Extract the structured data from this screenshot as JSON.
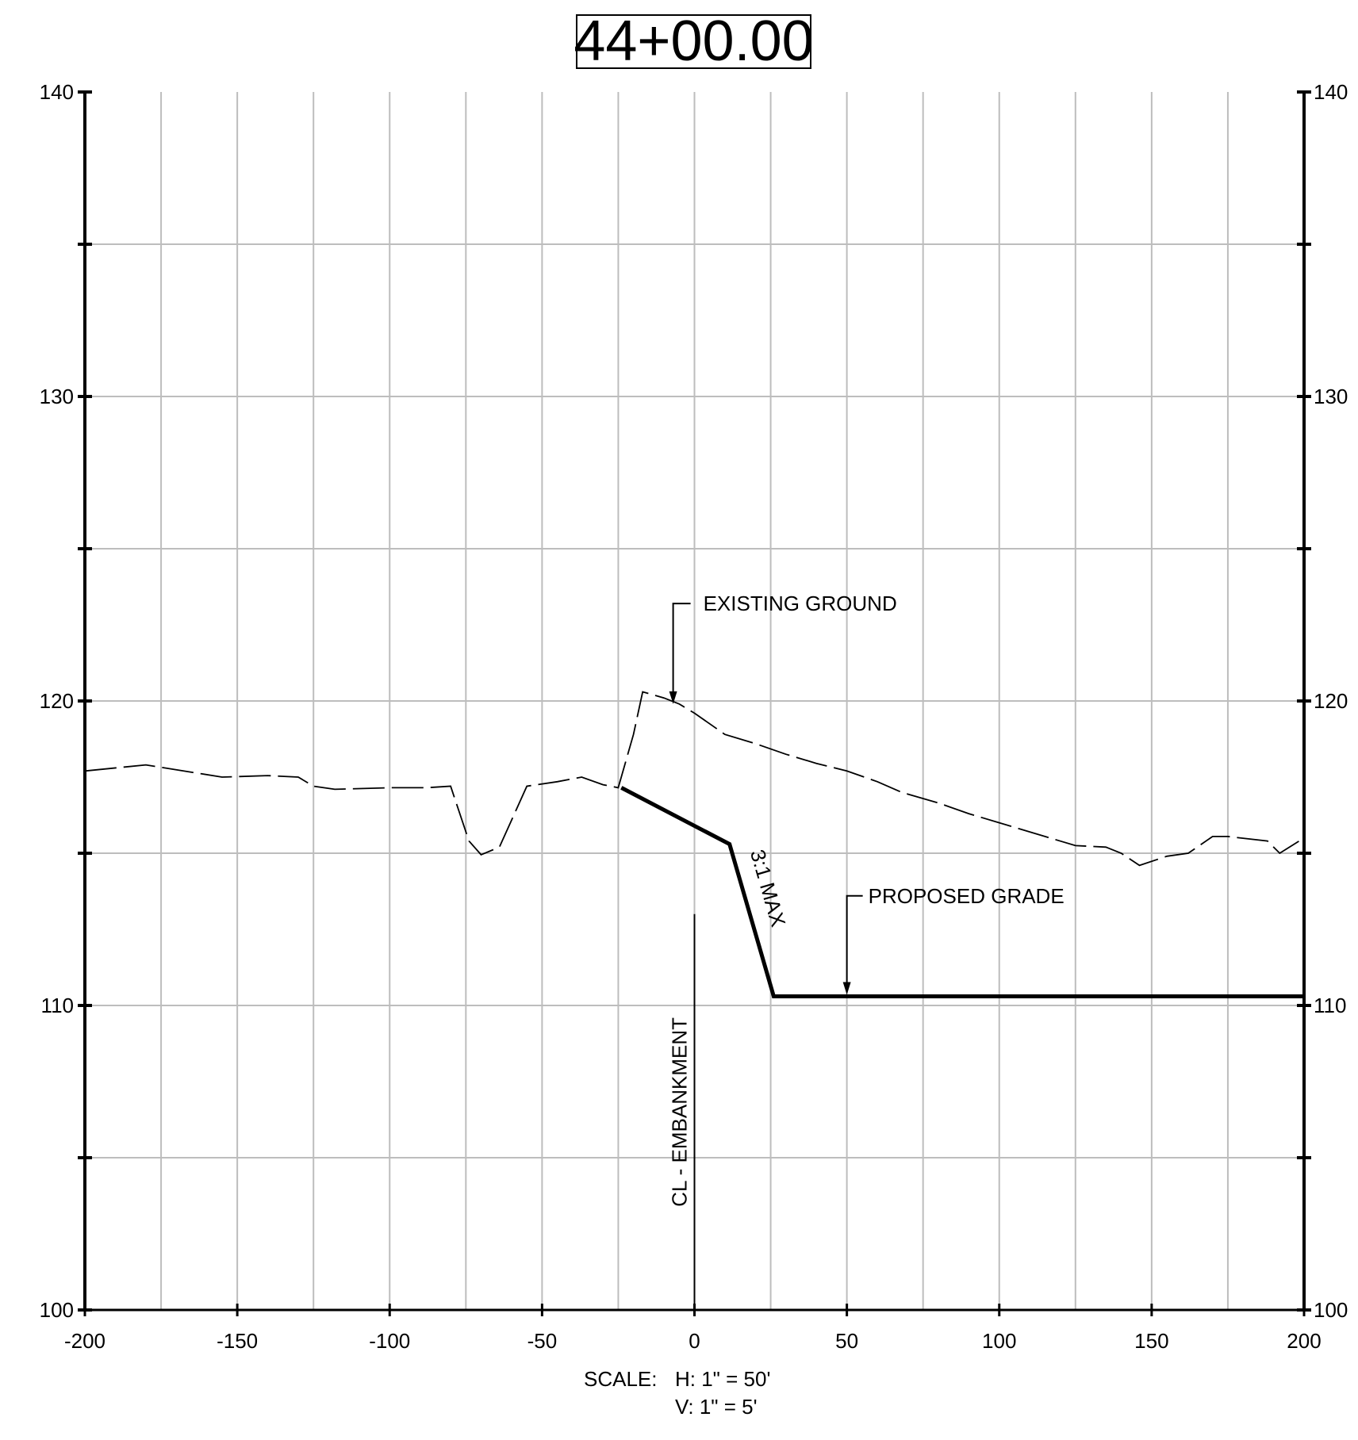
{
  "title": "44+00.00",
  "chart_data": {
    "type": "line",
    "title": "44+00.00",
    "xlim": [
      -200,
      200
    ],
    "ylim": [
      100,
      140
    ],
    "x_ticks": [
      -200,
      -150,
      -100,
      -50,
      0,
      50,
      100,
      150,
      200
    ],
    "y_ticks": [
      100,
      110,
      120,
      130,
      140
    ],
    "x_grid_step": 25,
    "y_grid_step": 5,
    "grid": true,
    "series": [
      {
        "name": "EXISTING GROUND",
        "style": "dashed",
        "points": [
          [
            -200,
            117.7
          ],
          [
            -180,
            117.9
          ],
          [
            -155,
            117.5
          ],
          [
            -140,
            117.55
          ],
          [
            -130,
            117.5
          ],
          [
            -125,
            117.2
          ],
          [
            -118,
            117.1
          ],
          [
            -100,
            117.15
          ],
          [
            -88,
            117.15
          ],
          [
            -80,
            117.2
          ],
          [
            -74,
            115.4
          ],
          [
            -70,
            114.95
          ],
          [
            -64,
            115.2
          ],
          [
            -55,
            117.2
          ],
          [
            -45,
            117.35
          ],
          [
            -37,
            117.5
          ],
          [
            -30,
            117.25
          ],
          [
            -25,
            117.15
          ],
          [
            -20,
            118.9
          ],
          [
            -17,
            120.3
          ],
          [
            -10,
            120.1
          ],
          [
            -5,
            119.9
          ],
          [
            0,
            119.6
          ],
          [
            10,
            118.9
          ],
          [
            20,
            118.6
          ],
          [
            30,
            118.25
          ],
          [
            40,
            117.95
          ],
          [
            50,
            117.7
          ],
          [
            60,
            117.35
          ],
          [
            68,
            117.0
          ],
          [
            80,
            116.65
          ],
          [
            90,
            116.3
          ],
          [
            100,
            116.0
          ],
          [
            115,
            115.55
          ],
          [
            125,
            115.25
          ],
          [
            135,
            115.2
          ],
          [
            140,
            115.0
          ],
          [
            146,
            114.6
          ],
          [
            155,
            114.9
          ],
          [
            162,
            115.0
          ],
          [
            170,
            115.55
          ],
          [
            175,
            115.55
          ],
          [
            188,
            115.4
          ],
          [
            192,
            115.0
          ],
          [
            200,
            115.5
          ]
        ]
      },
      {
        "name": "PROPOSED GRADE",
        "style": "solid",
        "points": [
          [
            -24,
            117.15
          ],
          [
            11.5,
            115.3
          ],
          [
            26,
            110.3
          ],
          [
            200,
            110.3
          ]
        ]
      }
    ],
    "annotations": {
      "existing_ground": {
        "text": "EXISTING GROUND",
        "target": [
          -7,
          119.9
        ]
      },
      "proposed_grade": {
        "text": "PROPOSED GRADE",
        "target": [
          50,
          110.3
        ]
      },
      "slope": {
        "text": "3:1 MAX"
      },
      "centerline": {
        "text": "CL - EMBANKMENT",
        "x": 0,
        "y_range": [
          100,
          113
        ]
      }
    }
  },
  "scale": {
    "label": "SCALE:",
    "horizontal": "H: 1\" = 50'",
    "vertical": "V: 1\" = 5'"
  }
}
